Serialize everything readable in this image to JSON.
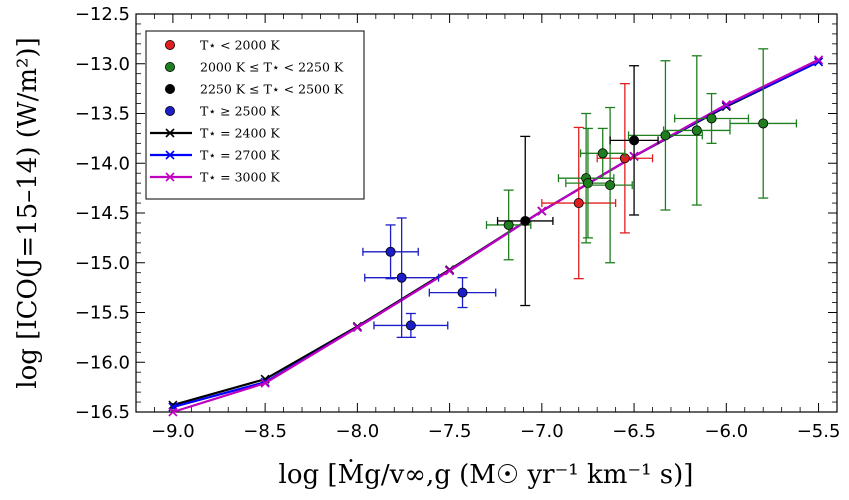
{
  "chart_data": {
    "type": "scatter",
    "title": "",
    "xlabel": "log [Ṁg/v∞,g (M☉ yr⁻¹ km⁻¹ s)]",
    "ylabel": "log [ICO(J=15–14) (W/m²)]",
    "xlim": [
      -9.2,
      -5.4
    ],
    "ylim": [
      -16.5,
      -12.5
    ],
    "xticks": [
      -9.0,
      -8.5,
      -8.0,
      -7.5,
      -7.0,
      -6.5,
      -6.0,
      -5.5
    ],
    "xtick_labels": [
      "−9.0",
      "−8.5",
      "−8.0",
      "−7.5",
      "−7.0",
      "−6.5",
      "−6.0",
      "−5.5"
    ],
    "yticks": [
      -16.5,
      -16.0,
      -15.5,
      -15.0,
      -14.5,
      -14.0,
      -13.5,
      -13.0,
      -12.5
    ],
    "ytick_labels": [
      "−16.5",
      "−16.0",
      "−15.5",
      "−15.0",
      "−14.5",
      "−14.0",
      "−13.5",
      "−13.0",
      "−12.5"
    ],
    "legend_position": "top-left",
    "points": [
      {
        "group": "red",
        "x": -6.8,
        "y": -14.4,
        "xerr": 0.2,
        "yerr": 0.76
      },
      {
        "group": "red",
        "x": -6.55,
        "y": -13.95,
        "xerr": 0.15,
        "yerr": 0.75
      },
      {
        "group": "green",
        "x": -7.18,
        "y": -14.62,
        "xerr": 0.12,
        "yerr": 0.35
      },
      {
        "group": "green",
        "x": -6.76,
        "y": -14.15,
        "xerr": 0.15,
        "yerr": 0.65
      },
      {
        "group": "green",
        "x": -6.75,
        "y": -14.2,
        "xerr": 0.12,
        "yerr": 0.55
      },
      {
        "group": "green",
        "x": -6.67,
        "y": -13.9,
        "xerr": 0.12,
        "yerr": 0.25
      },
      {
        "group": "green",
        "x": -6.63,
        "y": -14.22,
        "xerr": 0.12,
        "yerr": 0.78
      },
      {
        "group": "green",
        "x": -6.33,
        "y": -13.72,
        "xerr": 0.2,
        "yerr": 0.75
      },
      {
        "group": "green",
        "x": -6.16,
        "y": -13.67,
        "xerr": 0.18,
        "yerr": 0.75
      },
      {
        "group": "green",
        "x": -6.08,
        "y": -13.55,
        "xerr": 0.2,
        "yerr": 0.25
      },
      {
        "group": "green",
        "x": -5.8,
        "y": -13.6,
        "xerr": 0.18,
        "yerr": 0.75
      },
      {
        "group": "black",
        "x": -7.09,
        "y": -14.58,
        "xerr": 0.15,
        "yerr": 0.85
      },
      {
        "group": "black",
        "x": -6.5,
        "y": -13.77,
        "xerr": 0.13,
        "yerr": 0.75
      },
      {
        "group": "blue",
        "x": -7.82,
        "y": -14.89,
        "xerr": 0.15,
        "yerr": 0.27
      },
      {
        "group": "blue",
        "x": -7.76,
        "y": -15.15,
        "xerr": 0.2,
        "yerr": 0.6
      },
      {
        "group": "blue",
        "x": -7.71,
        "y": -15.63,
        "xerr": 0.2,
        "yerr": 0.12
      },
      {
        "group": "blue",
        "x": -7.43,
        "y": -15.3,
        "xerr": 0.18,
        "yerr": 0.15
      }
    ],
    "series": [
      {
        "name": "T⋆ = 2400 K",
        "color": "#000000",
        "x": [
          -9.0,
          -8.5,
          -8.0,
          -7.5,
          -7.0,
          -6.5,
          -6.0,
          -5.5
        ],
        "y": [
          -16.43,
          -16.17,
          -15.64,
          -15.07,
          -14.48,
          -13.93,
          -13.43,
          -12.98
        ]
      },
      {
        "name": "T⋆ = 2700 K",
        "color": "#0000ff",
        "x": [
          -9.0,
          -8.5,
          -8.0,
          -7.5,
          -7.0,
          -6.5,
          -6.0,
          -5.5
        ],
        "y": [
          -16.45,
          -16.2,
          -15.65,
          -15.08,
          -14.48,
          -13.93,
          -13.42,
          -12.98
        ]
      },
      {
        "name": "T⋆ = 3000 K",
        "color": "#bf00bf",
        "x": [
          -9.0,
          -8.5,
          -8.0,
          -7.5,
          -7.0,
          -6.5,
          -6.0,
          -5.5
        ],
        "y": [
          -16.5,
          -16.21,
          -15.65,
          -15.08,
          -14.48,
          -13.93,
          -13.41,
          -12.96
        ]
      }
    ],
    "groups": [
      {
        "key": "red",
        "label": "T⋆ < 2000 K",
        "color": "#e02020"
      },
      {
        "key": "green",
        "label": "2000 K ≤ T⋆ < 2250 K",
        "color": "#1f7f1f"
      },
      {
        "key": "black",
        "label": "2250 K ≤ T⋆ < 2500 K",
        "color": "#000000"
      },
      {
        "key": "blue",
        "label": "T⋆ ≥ 2500 K",
        "color": "#1c1cc8"
      }
    ]
  }
}
